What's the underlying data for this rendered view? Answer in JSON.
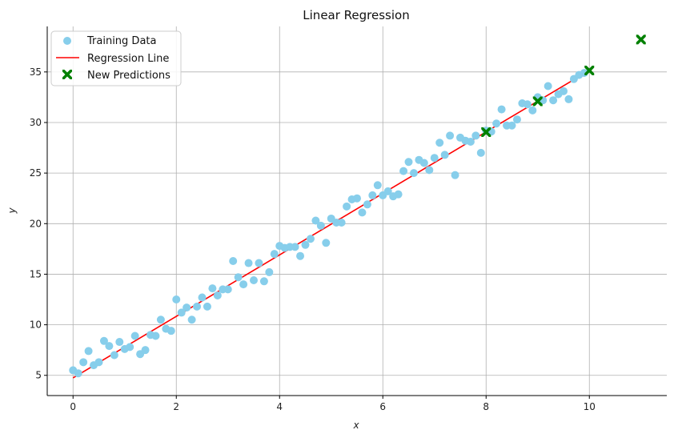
{
  "chart_data": {
    "type": "scatter",
    "title": "Linear Regression",
    "xlabel": "x",
    "ylabel": "y",
    "xlim": [
      -0.5,
      11.5
    ],
    "ylim": [
      3,
      39.5
    ],
    "xticks": [
      0,
      2,
      4,
      6,
      8,
      10
    ],
    "yticks": [
      5,
      10,
      15,
      20,
      25,
      30,
      35
    ],
    "grid": true,
    "legend_position": "top-left",
    "colors": {
      "training": "#87ceeb",
      "regression": "#ff0000",
      "predictions": "#008000"
    },
    "series": [
      {
        "name": "Training Data",
        "kind": "scatter",
        "x": [
          0.0,
          0.1,
          0.2,
          0.3,
          0.4,
          0.5,
          0.6,
          0.7,
          0.8,
          0.9,
          1.0,
          1.1,
          1.2,
          1.3,
          1.4,
          1.5,
          1.6,
          1.7,
          1.8,
          1.9,
          2.0,
          2.1,
          2.2,
          2.3,
          2.4,
          2.5,
          2.6,
          2.7,
          2.8,
          2.9,
          3.0,
          3.1,
          3.2,
          3.3,
          3.4,
          3.5,
          3.6,
          3.7,
          3.8,
          3.9,
          4.0,
          4.1,
          4.2,
          4.3,
          4.4,
          4.5,
          4.6,
          4.7,
          4.8,
          4.9,
          5.0,
          5.1,
          5.2,
          5.3,
          5.4,
          5.5,
          5.6,
          5.7,
          5.8,
          5.9,
          6.0,
          6.1,
          6.2,
          6.3,
          6.4,
          6.5,
          6.6,
          6.7,
          6.8,
          6.9,
          7.0,
          7.1,
          7.2,
          7.3,
          7.4,
          7.5,
          7.6,
          7.7,
          7.8,
          7.9,
          8.0,
          8.1,
          8.2,
          8.3,
          8.4,
          8.5,
          8.6,
          8.7,
          8.8,
          8.9,
          9.0,
          9.1,
          9.2,
          9.3,
          9.4,
          9.5,
          9.6,
          9.7,
          9.8,
          9.9
        ],
        "y": [
          5.5,
          5.2,
          6.3,
          7.4,
          6.0,
          6.3,
          8.4,
          7.9,
          7.0,
          8.3,
          7.6,
          7.8,
          8.9,
          7.1,
          7.5,
          9.0,
          8.9,
          10.5,
          9.6,
          9.4,
          12.5,
          11.2,
          11.7,
          10.5,
          11.8,
          12.7,
          11.8,
          13.6,
          12.9,
          13.5,
          13.5,
          16.3,
          14.7,
          14.0,
          16.1,
          14.4,
          16.1,
          14.3,
          15.2,
          17.0,
          17.8,
          17.6,
          17.7,
          17.7,
          16.8,
          17.9,
          18.5,
          20.3,
          19.8,
          18.1,
          20.5,
          20.1,
          20.1,
          21.7,
          22.4,
          22.5,
          21.1,
          21.9,
          22.8,
          23.8,
          22.8,
          23.2,
          22.7,
          22.9,
          25.2,
          26.1,
          25.0,
          26.3,
          26.0,
          25.3,
          26.5,
          28.0,
          26.8,
          28.7,
          24.8,
          28.5,
          28.2,
          28.1,
          28.7,
          27.0,
          29.2,
          29.1,
          29.9,
          31.3,
          29.7,
          29.7,
          30.3,
          31.9,
          31.8,
          31.2,
          32.5,
          32.2,
          33.6,
          32.2,
          32.8,
          33.1,
          32.3,
          34.3,
          34.7,
          34.9
        ]
      },
      {
        "name": "Regression Line",
        "kind": "line",
        "x": [
          0,
          10
        ],
        "y": [
          4.75,
          35.15
        ]
      },
      {
        "name": "New Predictions",
        "kind": "scatter",
        "marker": "X",
        "x": [
          8,
          9,
          10,
          11
        ],
        "y": [
          29.05,
          32.1,
          35.15,
          38.2
        ]
      }
    ]
  }
}
